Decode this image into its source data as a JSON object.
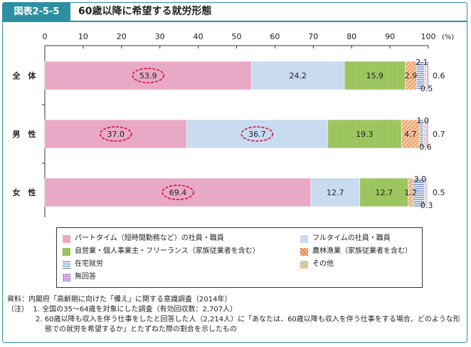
{
  "figure_label": "図表2-5-5",
  "title": "60歳以降に希望する就労形態",
  "chart_data": {
    "type": "bar",
    "orientation": "horizontal",
    "stacked": true,
    "x_ticks": [
      0,
      10,
      20,
      30,
      40,
      50,
      60,
      70,
      80,
      90,
      100
    ],
    "x_unit": "(%)",
    "xlim": [
      0,
      100
    ],
    "categories": [
      "全　体",
      "男　性",
      "女　性"
    ],
    "series": [
      {
        "name": "パートタイム（短時間勤務など）の社員・職員",
        "values": [
          53.9,
          37.0,
          69.4
        ],
        "color": "#e8a9c6",
        "pattern": "solid"
      },
      {
        "name": "フルタイムの社員・職員",
        "values": [
          24.2,
          36.7,
          12.7
        ],
        "color": "#c9dbf0",
        "pattern": "solid"
      },
      {
        "name": "自営業・個人事業主・フリーランス（家族従業者を含む）",
        "values": [
          15.9,
          19.3,
          12.7
        ],
        "color": "#a8cf6a",
        "pattern": "vlines"
      },
      {
        "name": "農林漁業（家族従業者を含む）",
        "values": [
          2.9,
          4.7,
          1.2
        ],
        "color": "#f0a070",
        "pattern": "diag"
      },
      {
        "name": "在宅就労",
        "values": [
          2.1,
          1.0,
          3.0
        ],
        "color": "#6a8fd0",
        "pattern": "hlines"
      },
      {
        "name": "その他",
        "values": [
          0.5,
          0.6,
          0.3
        ],
        "color": "#d9c9a0",
        "pattern": "diag2"
      },
      {
        "name": "無回答",
        "values": [
          0.6,
          0.7,
          0.5
        ],
        "color": "#c8a0d8",
        "pattern": "dots"
      }
    ],
    "bar_labels": {
      "inside": [
        [
          {
            "value": "53.9",
            "circled": true
          },
          {
            "value": "24.2"
          },
          {
            "value": "15.9"
          },
          {
            "value": "2.9"
          }
        ],
        [
          {
            "value": "37.0",
            "circled": true
          },
          {
            "value": "36.7",
            "circled": true
          },
          {
            "value": "19.3"
          },
          {
            "value": "4.7"
          }
        ],
        [
          {
            "value": "69.4",
            "circled": true
          },
          {
            "value": "12.7"
          },
          {
            "value": "12.7"
          },
          {
            "value": "1.2"
          }
        ]
      ],
      "above": [
        "2.1",
        "1.0",
        "3.0"
      ],
      "below": [
        "0.5",
        "0.6",
        "0.3"
      ],
      "right": [
        "0.6",
        "0.7",
        "0.5"
      ]
    }
  },
  "notes": {
    "source": "資料：内閣府「高齢期に向けた「備え」に関する意識調査（2014年）",
    "note_head": "（注）",
    "note1": "1.  全国の35～64歳を対象にした調査（有効回収数：2,707人）",
    "note2": "2.  60歳以降も収入を伴う仕事をしたと回答した人（2,214人）に「あなたは、60歳以降も収入を伴う仕事をする場合、どのような形態での就労を希望するか」とたずねた際の割合を示したもの"
  }
}
